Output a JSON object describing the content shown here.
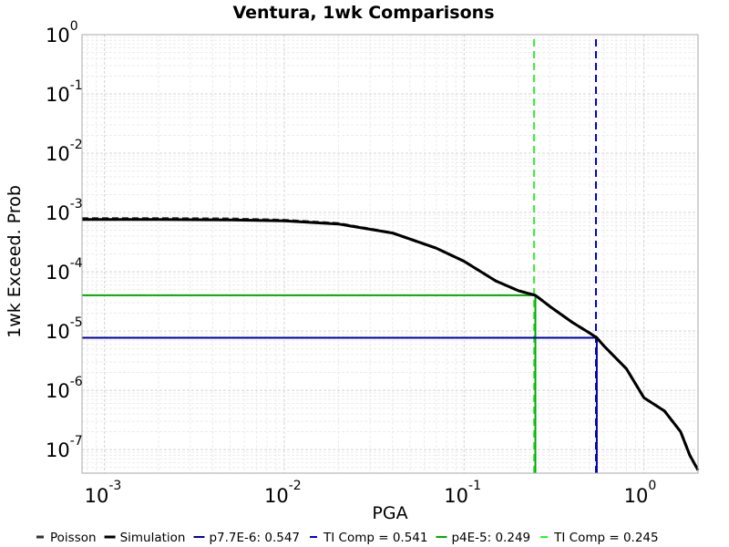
{
  "chart_data": {
    "type": "line",
    "title": "Ventura, 1wk Comparisons",
    "xlabel": "PGA",
    "ylabel": "1wk Exceed. Prob",
    "x_scale": "log",
    "y_scale": "log",
    "xlim": [
      0.00075,
      2.0
    ],
    "ylim": [
      4e-08,
      1.0
    ],
    "grid": true,
    "legend_position": "bottom",
    "x_ticks": [
      {
        "base": "10",
        "exp": "-3",
        "value": 0.001
      },
      {
        "base": "10",
        "exp": "-2",
        "value": 0.01
      },
      {
        "base": "10",
        "exp": "-1",
        "value": 0.1
      },
      {
        "base": "10",
        "exp": "0",
        "value": 1
      }
    ],
    "y_ticks": [
      {
        "base": "10",
        "exp": "0",
        "value": 1
      },
      {
        "base": "10",
        "exp": "-1",
        "value": 0.1
      },
      {
        "base": "10",
        "exp": "-2",
        "value": 0.01
      },
      {
        "base": "10",
        "exp": "-3",
        "value": 0.001
      },
      {
        "base": "10",
        "exp": "-4",
        "value": 0.0001
      },
      {
        "base": "10",
        "exp": "-5",
        "value": 1e-05
      },
      {
        "base": "10",
        "exp": "-6",
        "value": 1e-06
      },
      {
        "base": "10",
        "exp": "-7",
        "value": 1e-07
      }
    ],
    "series": [
      {
        "name": "Poisson",
        "color": "#333333",
        "style": "dashed",
        "x": [
          0.00075,
          0.002,
          0.005,
          0.01,
          0.02,
          0.04,
          0.07,
          0.1,
          0.15,
          0.2,
          0.249,
          0.3,
          0.4,
          0.5,
          0.547,
          0.6,
          0.8,
          1.0,
          1.3,
          1.6,
          1.8,
          2.0
        ],
        "y": [
          0.00079,
          0.00079,
          0.00078,
          0.00074,
          0.00065,
          0.00045,
          0.00025,
          0.00015,
          7e-05,
          4.8e-05,
          4e-05,
          2.6e-05,
          1.4e-05,
          9.2e-06,
          7.7e-06,
          5.6e-06,
          2.3e-06,
          7.5e-07,
          4.5e-07,
          2e-07,
          8e-08,
          4.5e-08
        ]
      },
      {
        "name": "Simulation",
        "color": "#000000",
        "style": "solid",
        "x": [
          0.00075,
          0.002,
          0.005,
          0.01,
          0.02,
          0.04,
          0.07,
          0.1,
          0.15,
          0.2,
          0.249,
          0.3,
          0.4,
          0.5,
          0.547,
          0.6,
          0.8,
          1.0,
          1.3,
          1.6,
          1.8,
          2.0
        ],
        "y": [
          0.00076,
          0.00076,
          0.00075,
          0.00072,
          0.00064,
          0.00045,
          0.00025,
          0.00015,
          7e-05,
          4.8e-05,
          4e-05,
          2.6e-05,
          1.4e-05,
          9.2e-06,
          7.7e-06,
          5.6e-06,
          2.3e-06,
          7.5e-07,
          4.5e-07,
          2e-07,
          8e-08,
          4.5e-08
        ]
      },
      {
        "name": "p7.7E-6: 0.547",
        "color": "#0000aa",
        "style": "solid",
        "x": [
          0.00075,
          0.547,
          0.547
        ],
        "y": [
          7.7e-06,
          7.7e-06,
          4e-08
        ]
      },
      {
        "name": "TI Comp = 0.541",
        "color": "#0000dd",
        "style": "dashed",
        "x": [
          0.541,
          0.541
        ],
        "y": [
          4e-08,
          1.0
        ]
      },
      {
        "name": "p4E-5: 0.249",
        "color": "#00aa00",
        "style": "solid",
        "x": [
          0.00075,
          0.249,
          0.249
        ],
        "y": [
          4e-05,
          4e-05,
          4e-08
        ]
      },
      {
        "name": "TI Comp = 0.245",
        "color": "#33ee33",
        "style": "dashed",
        "x": [
          0.245,
          0.245
        ],
        "y": [
          4e-08,
          1.0
        ]
      }
    ]
  }
}
